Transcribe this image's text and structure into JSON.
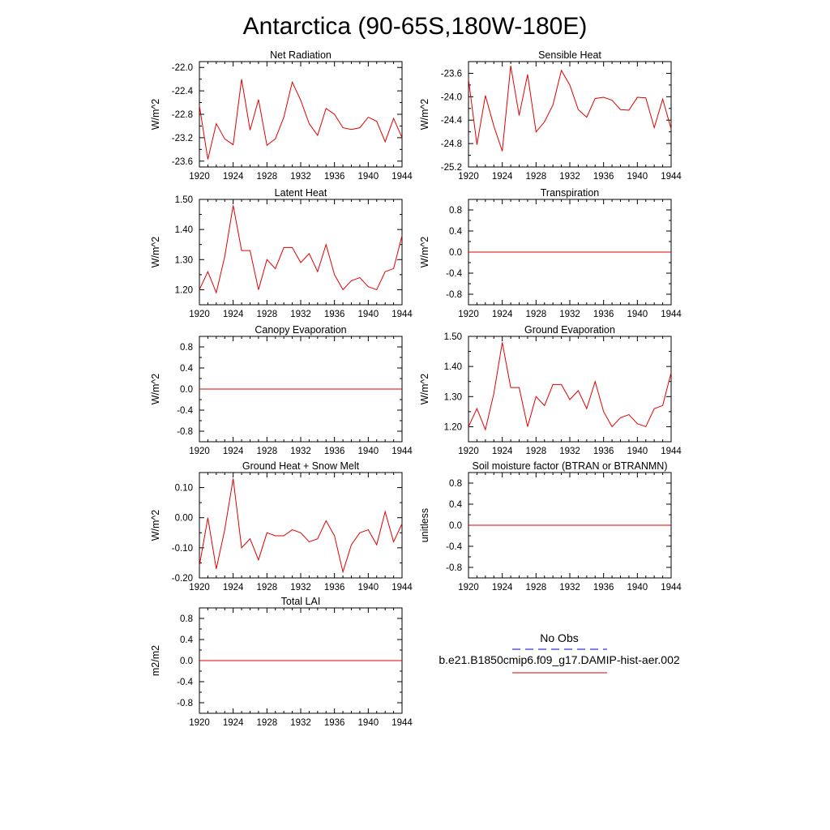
{
  "title": "Antarctica (90-65S,180W-180E)",
  "colors": {
    "model": "#e00000",
    "obs": "#0000cc",
    "axis": "#000000"
  },
  "legend": {
    "obs_label": "No Obs",
    "model_label": "b.e21.B1850cmip6.f09_g17.DAMIP-hist-aer.002"
  },
  "chart_data": [
    {
      "type": "line",
      "title": "Net Radiation",
      "ylabel": "W/m^2",
      "xlim": [
        1920,
        1944
      ],
      "ylim": [
        -23.7,
        -21.9
      ],
      "xticks": [
        1920,
        1924,
        1928,
        1932,
        1936,
        1940,
        1944
      ],
      "xtick_labels": [
        "1920",
        "1924",
        "1928",
        "1932",
        "1936",
        "1940",
        "1944"
      ],
      "yticks": [
        -22.0,
        -22.4,
        -22.8,
        -23.2,
        -23.6
      ],
      "ytick_labels": [
        "-22.0",
        "-22.4",
        "-22.8",
        "-23.2",
        "-23.6"
      ],
      "x": [
        1920,
        1921,
        1922,
        1923,
        1924,
        1925,
        1926,
        1927,
        1928,
        1929,
        1930,
        1931,
        1932,
        1933,
        1934,
        1935,
        1936,
        1937,
        1938,
        1939,
        1940,
        1941,
        1942,
        1943,
        1944
      ],
      "y": [
        -22.65,
        -23.57,
        -22.96,
        -23.22,
        -23.32,
        -22.2,
        -23.07,
        -22.55,
        -23.33,
        -23.22,
        -22.85,
        -22.25,
        -22.56,
        -22.96,
        -23.16,
        -22.7,
        -22.8,
        -23.03,
        -23.06,
        -23.03,
        -22.85,
        -22.92,
        -23.27,
        -22.87,
        -23.2
      ]
    },
    {
      "type": "line",
      "title": "Sensible Heat",
      "ylabel": "W/m^2",
      "xlim": [
        1920,
        1944
      ],
      "ylim": [
        -25.2,
        -23.4
      ],
      "xticks": [
        1920,
        1924,
        1928,
        1932,
        1936,
        1940,
        1944
      ],
      "xtick_labels": [
        "1920",
        "1924",
        "1928",
        "1932",
        "1936",
        "1940",
        "1944"
      ],
      "yticks": [
        -23.6,
        -24.0,
        -24.4,
        -24.8,
        -25.2
      ],
      "ytick_labels": [
        "-23.6",
        "-24.0",
        "-24.4",
        "-24.8",
        "-25.2"
      ],
      "x": [
        1920,
        1921,
        1922,
        1923,
        1924,
        1925,
        1926,
        1927,
        1928,
        1929,
        1930,
        1931,
        1932,
        1933,
        1934,
        1935,
        1936,
        1937,
        1938,
        1939,
        1940,
        1941,
        1942,
        1943,
        1944
      ],
      "y": [
        -23.7,
        -24.82,
        -23.98,
        -24.5,
        -24.93,
        -23.47,
        -24.32,
        -23.62,
        -24.6,
        -24.43,
        -24.14,
        -23.55,
        -23.8,
        -24.22,
        -24.35,
        -24.03,
        -24.01,
        -24.06,
        -24.22,
        -24.23,
        -24.01,
        -24.02,
        -24.53,
        -24.04,
        -24.55
      ]
    },
    {
      "type": "line",
      "title": "Latent Heat",
      "ylabel": "W/m^2",
      "xlim": [
        1920,
        1944
      ],
      "ylim": [
        1.15,
        1.5
      ],
      "xticks": [
        1920,
        1924,
        1928,
        1932,
        1936,
        1940,
        1944
      ],
      "xtick_labels": [
        "1920",
        "1924",
        "1928",
        "1932",
        "1936",
        "1940",
        "1944"
      ],
      "yticks": [
        1.2,
        1.3,
        1.4,
        1.5
      ],
      "ytick_labels": [
        "1.20",
        "1.30",
        "1.40",
        "1.50"
      ],
      "x": [
        1920,
        1921,
        1922,
        1923,
        1924,
        1925,
        1926,
        1927,
        1928,
        1929,
        1930,
        1931,
        1932,
        1933,
        1934,
        1935,
        1936,
        1937,
        1938,
        1939,
        1940,
        1941,
        1942,
        1943,
        1944
      ],
      "y": [
        1.2,
        1.26,
        1.19,
        1.31,
        1.48,
        1.33,
        1.33,
        1.2,
        1.3,
        1.27,
        1.34,
        1.34,
        1.29,
        1.32,
        1.26,
        1.35,
        1.25,
        1.2,
        1.23,
        1.24,
        1.21,
        1.2,
        1.26,
        1.27,
        1.38
      ]
    },
    {
      "type": "line",
      "title": "Transpiration",
      "ylabel": "W/m^2",
      "xlim": [
        1920,
        1944
      ],
      "ylim": [
        -1.0,
        1.0
      ],
      "xticks": [
        1920,
        1924,
        1928,
        1932,
        1936,
        1940,
        1944
      ],
      "xtick_labels": [
        "1920",
        "1924",
        "1928",
        "1932",
        "1936",
        "1940",
        "1944"
      ],
      "yticks": [
        0.8,
        0.4,
        0.0,
        -0.4,
        -0.8
      ],
      "ytick_labels": [
        "0.8",
        "0.4",
        "0.0",
        "-0.4",
        "-0.8"
      ],
      "x": [
        1920,
        1944
      ],
      "y": [
        0.0,
        0.0
      ]
    },
    {
      "type": "line",
      "title": "Canopy Evaporation",
      "ylabel": "W/m^2",
      "xlim": [
        1920,
        1944
      ],
      "ylim": [
        -1.0,
        1.0
      ],
      "xticks": [
        1920,
        1924,
        1928,
        1932,
        1936,
        1940,
        1944
      ],
      "xtick_labels": [
        "1920",
        "1924",
        "1928",
        "1932",
        "1936",
        "1940",
        "1944"
      ],
      "yticks": [
        0.8,
        0.4,
        0.0,
        -0.4,
        -0.8
      ],
      "ytick_labels": [
        "0.8",
        "0.4",
        "0.0",
        "-0.4",
        "-0.8"
      ],
      "x": [
        1920,
        1944
      ],
      "y": [
        0.0,
        0.0
      ]
    },
    {
      "type": "line",
      "title": "Ground Evaporation",
      "ylabel": "W/m^2",
      "xlim": [
        1920,
        1944
      ],
      "ylim": [
        1.15,
        1.5
      ],
      "xticks": [
        1920,
        1924,
        1928,
        1932,
        1936,
        1940,
        1944
      ],
      "xtick_labels": [
        "1920",
        "1924",
        "1928",
        "1932",
        "1936",
        "1940",
        "1944"
      ],
      "yticks": [
        1.2,
        1.3,
        1.4,
        1.5
      ],
      "ytick_labels": [
        "1.20",
        "1.30",
        "1.40",
        "1.50"
      ],
      "x": [
        1920,
        1921,
        1922,
        1923,
        1924,
        1925,
        1926,
        1927,
        1928,
        1929,
        1930,
        1931,
        1932,
        1933,
        1934,
        1935,
        1936,
        1937,
        1938,
        1939,
        1940,
        1941,
        1942,
        1943,
        1944
      ],
      "y": [
        1.2,
        1.26,
        1.19,
        1.31,
        1.48,
        1.33,
        1.33,
        1.2,
        1.3,
        1.27,
        1.34,
        1.34,
        1.29,
        1.32,
        1.26,
        1.35,
        1.25,
        1.2,
        1.23,
        1.24,
        1.21,
        1.2,
        1.26,
        1.27,
        1.38
      ]
    },
    {
      "type": "line",
      "title": "Ground Heat + Snow Melt",
      "ylabel": "W/m^2",
      "xlim": [
        1920,
        1944
      ],
      "ylim": [
        -0.2,
        0.15
      ],
      "xticks": [
        1920,
        1924,
        1928,
        1932,
        1936,
        1940,
        1944
      ],
      "xtick_labels": [
        "1920",
        "1924",
        "1928",
        "1932",
        "1936",
        "1940",
        "1944"
      ],
      "yticks": [
        0.1,
        0.0,
        -0.1,
        -0.2
      ],
      "ytick_labels": [
        "0.10",
        "0.00",
        "-0.10",
        "-0.20"
      ],
      "x": [
        1920,
        1921,
        1922,
        1923,
        1924,
        1925,
        1926,
        1927,
        1928,
        1929,
        1930,
        1931,
        1932,
        1933,
        1934,
        1935,
        1936,
        1937,
        1938,
        1939,
        1940,
        1941,
        1942,
        1943,
        1944
      ],
      "y": [
        -0.16,
        0.0,
        -0.17,
        -0.04,
        0.13,
        -0.1,
        -0.07,
        -0.14,
        -0.05,
        -0.06,
        -0.06,
        -0.04,
        -0.05,
        -0.08,
        -0.07,
        -0.01,
        -0.06,
        -0.18,
        -0.09,
        -0.05,
        -0.04,
        -0.09,
        0.02,
        -0.08,
        -0.02
      ]
    },
    {
      "type": "line",
      "title": "Soil moisture factor (BTRAN or BTRANMN)",
      "ylabel": "unitless",
      "xlim": [
        1920,
        1944
      ],
      "ylim": [
        -1.0,
        1.0
      ],
      "xticks": [
        1920,
        1924,
        1928,
        1932,
        1936,
        1940,
        1944
      ],
      "xtick_labels": [
        "1920",
        "1924",
        "1928",
        "1932",
        "1936",
        "1940",
        "1944"
      ],
      "yticks": [
        0.8,
        0.4,
        0.0,
        -0.4,
        -0.8
      ],
      "ytick_labels": [
        "0.8",
        "0.4",
        "0.0",
        "-0.4",
        "-0.8"
      ],
      "x": [
        1920,
        1944
      ],
      "y": [
        0.0,
        0.0
      ]
    },
    {
      "type": "line",
      "title": "Total LAI",
      "ylabel": "m2/m2",
      "xlim": [
        1920,
        1944
      ],
      "ylim": [
        -1.0,
        1.0
      ],
      "xticks": [
        1920,
        1924,
        1928,
        1932,
        1936,
        1940,
        1944
      ],
      "xtick_labels": [
        "1920",
        "1924",
        "1928",
        "1932",
        "1936",
        "1940",
        "1944"
      ],
      "yticks": [
        0.8,
        0.4,
        0.0,
        -0.4,
        -0.8
      ],
      "ytick_labels": [
        "0.8",
        "0.4",
        "0.0",
        "-0.4",
        "-0.8"
      ],
      "x": [
        1920,
        1944
      ],
      "y": [
        0.0,
        0.0
      ]
    }
  ]
}
